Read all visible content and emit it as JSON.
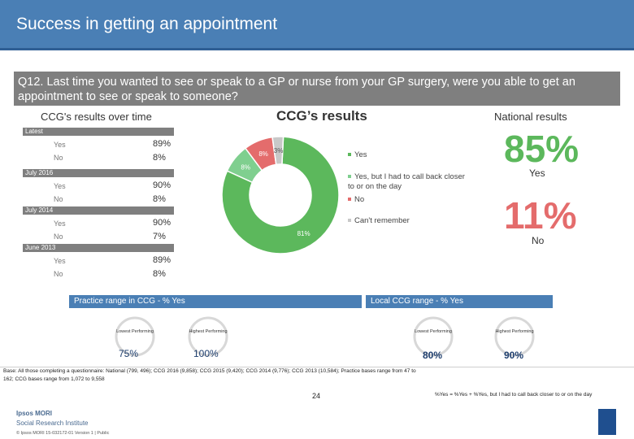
{
  "header": {
    "title": "Success in getting an appointment"
  },
  "question": "Q12. Last time you wanted to see or speak to a GP or nurse from your GP surgery, were you able to get an appointment to see or speak to someone?",
  "sections": {
    "over_time": "CCG's results over time",
    "ccg": "CCG’s results",
    "national": "National results"
  },
  "chart_data": [
    {
      "type": "bar",
      "title": "CCG's results over time",
      "categories": [
        "Latest",
        "July 2016",
        "July 2014",
        "June 2013"
      ],
      "series": [
        {
          "name": "Yes",
          "values": [
            89,
            90,
            90,
            89
          ]
        },
        {
          "name": "No",
          "values": [
            8,
            8,
            7,
            8
          ]
        }
      ],
      "labels": {
        "yes": [
          "89%",
          "90%",
          "90%",
          "89%"
        ],
        "no": [
          "8%",
          "8%",
          "7%",
          "8%"
        ],
        "row_yes": "Yes",
        "row_no": "No"
      }
    },
    {
      "type": "pie",
      "title": "CCG’s results",
      "categories": [
        "Yes",
        "Yes, but I had to call back closer to or on the day",
        "No",
        "Can't remember"
      ],
      "values": [
        81,
        8,
        8,
        3
      ],
      "slice_labels": [
        "81%",
        "8%",
        "8%",
        "3%"
      ],
      "colors": [
        "#5cb85c",
        "#7fcf8f",
        "#e46c6c",
        "#c8c8c8"
      ]
    }
  ],
  "legend": [
    {
      "label": "Yes",
      "color": "#5cb85c"
    },
    {
      "label": "Yes, but I had to call back closer to or on the day",
      "color": "#7fcf8f"
    },
    {
      "label": "No",
      "color": "#e46c6c"
    },
    {
      "label": "Can't remember",
      "color": "#c8c8c8"
    }
  ],
  "national": {
    "yes_value": "85%",
    "yes_label": "Yes",
    "no_value": "11%",
    "no_label": "No"
  },
  "practice_range": {
    "title": "Practice range in CCG - % Yes",
    "lowest_label": "Lowest Performing",
    "lowest_value": "75%",
    "highest_label": "Highest Performing",
    "highest_value": "100%"
  },
  "local_range": {
    "title": "Local CCG range - % Yes",
    "lowest_label": "Lowest Performing",
    "lowest_value": "80%",
    "highest_label": "Highest Performing",
    "highest_value": "90%"
  },
  "footer": {
    "base_note": "Base: All those completing a questionnaire: National (799, 496); CCG 2016 (9,858); CCG 2015 (9,420); CCG 2014 (9,776); CCG 2013 (10,584); Practice bases range from 47 to 162; CCG bases range from 1,072 to 9,558",
    "definition": "%Yes = %Yes + %Yes, but I had to call back closer to or on the day",
    "page_number": "24",
    "logo_line1": "Ipsos MORI",
    "logo_line2": "Social Research Institute",
    "copyright": "© Ipsos MORI    15-032172-01 Version 1 | Public"
  }
}
